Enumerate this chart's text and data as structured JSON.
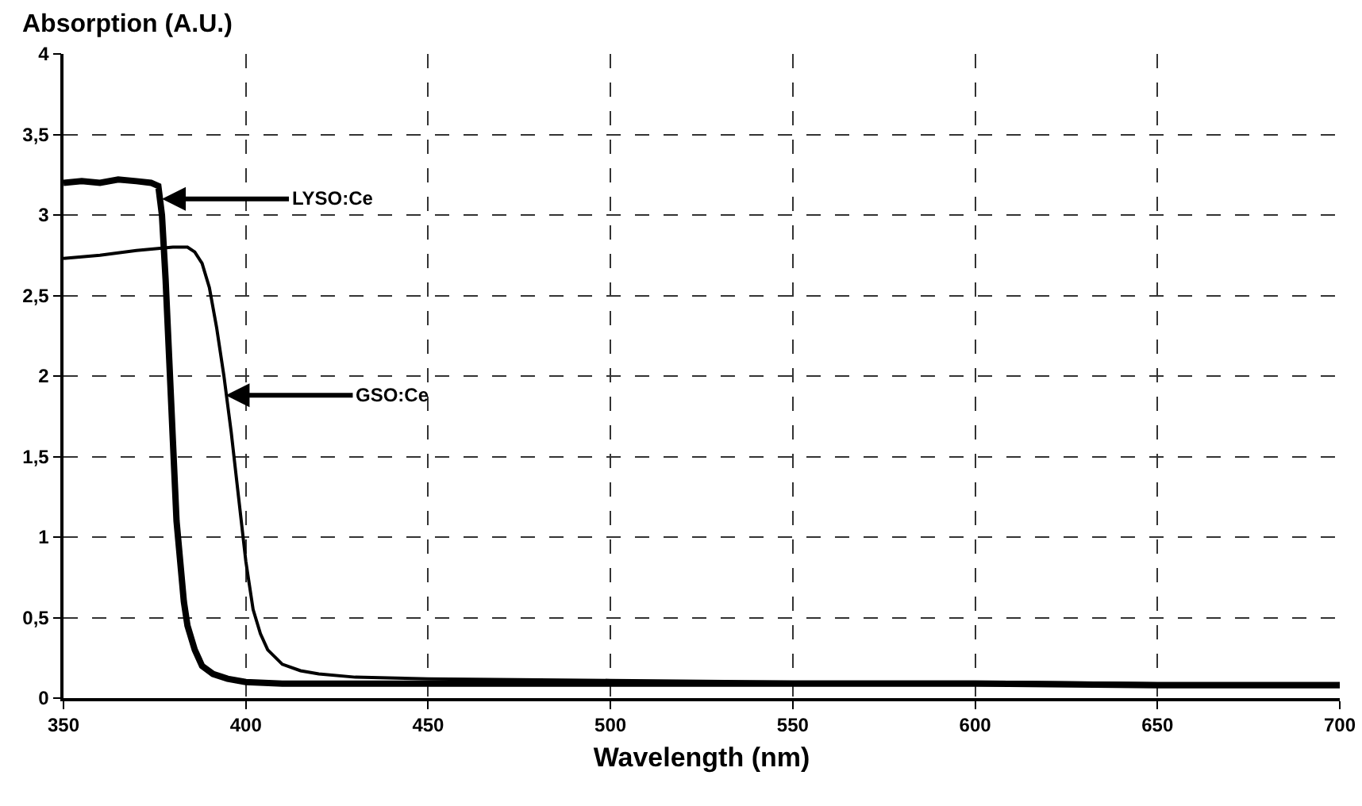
{
  "chart_data": {
    "type": "line",
    "xlabel": "Wavelength (nm)",
    "ylabel": "Absorption (A.U.)",
    "xlim": [
      350,
      700
    ],
    "xticks": [
      350,
      400,
      450,
      500,
      550,
      600,
      650,
      700
    ],
    "ylim": [
      0,
      4
    ],
    "yticks": [
      0,
      {
        "value": 0.5,
        "label": "0,5"
      },
      1,
      {
        "value": 1.5,
        "label": "1,5"
      },
      2,
      {
        "value": 2.5,
        "label": "2,5"
      },
      3,
      {
        "value": 3.5,
        "label": "3,5"
      },
      4
    ],
    "grid": true,
    "marker": "none",
    "line_style": "solid",
    "series": [
      {
        "color": "#000000",
        "x": [
          350,
          355,
          360,
          365,
          370,
          374,
          376,
          377,
          378,
          379,
          380,
          381,
          382,
          383,
          384,
          386,
          388,
          391,
          395,
          400,
          410,
          430,
          450,
          500,
          550,
          600,
          650,
          700
        ],
        "values": [
          3.2,
          3.21,
          3.2,
          3.22,
          3.21,
          3.2,
          3.18,
          3.0,
          2.6,
          2.1,
          1.6,
          1.1,
          0.85,
          0.6,
          0.45,
          0.3,
          0.2,
          0.15,
          0.12,
          0.1,
          0.09,
          0.09,
          0.09,
          0.09,
          0.09,
          0.09,
          0.08,
          0.08
        ]
      },
      {
        "color": "#000000",
        "x": [
          350,
          360,
          370,
          380,
          384,
          386,
          388,
          390,
          392,
          394,
          396,
          398,
          400,
          402,
          404,
          406,
          410,
          415,
          420,
          430,
          450,
          500,
          550,
          600,
          650,
          700
        ],
        "values": [
          2.73,
          2.75,
          2.78,
          2.8,
          2.8,
          2.77,
          2.7,
          2.55,
          2.3,
          2.0,
          1.65,
          1.25,
          0.85,
          0.55,
          0.4,
          0.3,
          0.21,
          0.17,
          0.15,
          0.13,
          0.12,
          0.11,
          0.1,
          0.1,
          0.09,
          0.09
        ]
      }
    ],
    "annotations": [
      {
        "text": "LYSO:Ce",
        "x": 377,
        "y": 3.1
      },
      {
        "text": "GSO:Ce",
        "x": 394.5,
        "y": 1.88
      }
    ]
  }
}
